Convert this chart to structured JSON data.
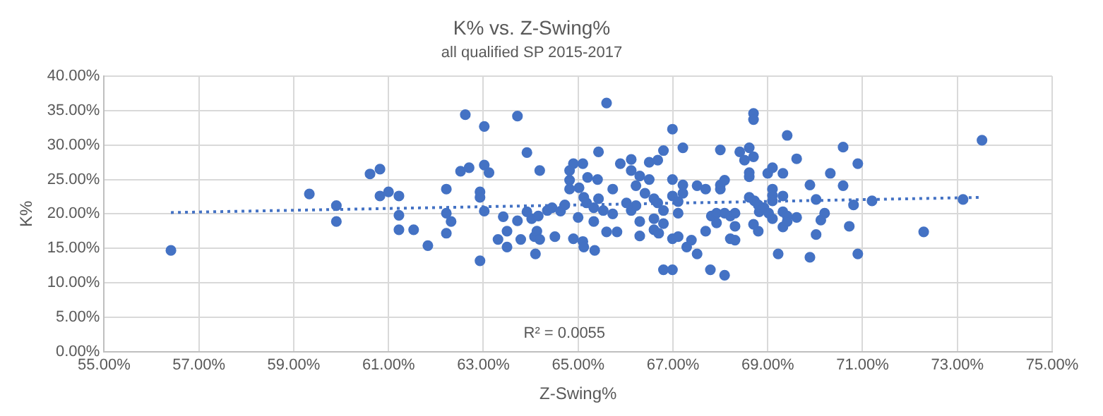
{
  "chart_data": {
    "type": "scatter",
    "title": "K% vs. Z-Swing%",
    "subtitle": "all qualified SP 2015-2017",
    "xlabel": "Z-Swing%",
    "ylabel": "K%",
    "xlim": [
      55,
      75
    ],
    "xticks": [
      {
        "value": 55,
        "label": "55.00%"
      },
      {
        "value": 57,
        "label": "57.00%"
      },
      {
        "value": 59,
        "label": "59.00%"
      },
      {
        "value": 61,
        "label": "61.00%"
      },
      {
        "value": 63,
        "label": "63.00%"
      },
      {
        "value": 65,
        "label": "65.00%"
      },
      {
        "value": 67,
        "label": "67.00%"
      },
      {
        "value": 69,
        "label": "69.00%"
      },
      {
        "value": 71,
        "label": "71.00%"
      },
      {
        "value": 73,
        "label": "73.00%"
      },
      {
        "value": 75,
        "label": "75.00%"
      }
    ],
    "ylim": [
      0,
      40
    ],
    "yticks": [
      {
        "value": 0,
        "label": "0.00%"
      },
      {
        "value": 5,
        "label": "5.00%"
      },
      {
        "value": 10,
        "label": "10.00%"
      },
      {
        "value": 15,
        "label": "15.00%"
      },
      {
        "value": 20,
        "label": "20.00%"
      },
      {
        "value": 25,
        "label": "25.00%"
      },
      {
        "value": 30,
        "label": "30.00%"
      },
      {
        "value": 35,
        "label": "35.00%"
      },
      {
        "value": 40,
        "label": "40.00%"
      }
    ],
    "grid": true,
    "marker": "circle",
    "annotations": [
      "R² = 0.0055"
    ],
    "series": [
      {
        "type": "scatter",
        "color": "#4472c4",
        "x": [
          56.41,
          59.33,
          59.9,
          59.9,
          60.61,
          60.82,
          60.82,
          61.0,
          61.22,
          61.22,
          61.22,
          61.53,
          61.83,
          62.22,
          62.22,
          62.22,
          62.32,
          62.62,
          62.52,
          62.7,
          62.93,
          62.93,
          62.93,
          63.02,
          63.02,
          63.12,
          63.02,
          63.42,
          63.31,
          63.5,
          63.5,
          63.72,
          63.72,
          63.79,
          63.92,
          63.92,
          64.02,
          64.08,
          64.1,
          64.19,
          64.16,
          64.13,
          64.19,
          64.35,
          64.45,
          64.51,
          64.63,
          64.72,
          64.82,
          64.82,
          64.82,
          64.9,
          64.9,
          65.02,
          65.0,
          65.1,
          65.12,
          65.1,
          65.12,
          65.18,
          65.2,
          65.33,
          65.33,
          65.35,
          65.41,
          65.43,
          65.43,
          65.53,
          65.6,
          65.6,
          65.73,
          65.73,
          65.82,
          65.89,
          66.02,
          66.12,
          66.12,
          66.12,
          66.22,
          66.22,
          66.3,
          66.3,
          66.3,
          66.41,
          66.5,
          66.5,
          66.6,
          66.6,
          66.6,
          66.68,
          66.68,
          66.7,
          66.8,
          66.8,
          66.8,
          66.8,
          66.99,
          66.99,
          66.99,
          66.99,
          66.99,
          67.11,
          67.11,
          67.11,
          67.21,
          67.21,
          67.21,
          67.29,
          67.39,
          67.51,
          67.51,
          67.69,
          67.69,
          67.81,
          67.79,
          67.92,
          67.92,
          68.0,
          68.0,
          68.0,
          68.09,
          68.09,
          68.09,
          68.21,
          68.21,
          68.31,
          68.31,
          68.31,
          68.41,
          68.51,
          68.61,
          68.61,
          68.61,
          68.61,
          68.7,
          68.7,
          68.7,
          68.7,
          68.72,
          68.8,
          68.8,
          68.82,
          68.92,
          69.0,
          69.02,
          69.1,
          69.1,
          69.1,
          69.1,
          69.1,
          69.22,
          69.32,
          69.32,
          69.32,
          69.32,
          69.41,
          69.41,
          69.41,
          69.61,
          69.61,
          69.89,
          69.89,
          70.02,
          70.02,
          70.12,
          70.2,
          70.32,
          70.59,
          70.59,
          70.72,
          70.81,
          70.9,
          70.9,
          71.2,
          72.29,
          73.12,
          73.52
        ],
        "values": [
          14.7,
          22.9,
          21.2,
          18.9,
          25.8,
          26.5,
          22.6,
          23.2,
          22.6,
          19.8,
          17.7,
          17.7,
          15.4,
          23.6,
          20.1,
          17.2,
          18.9,
          34.4,
          26.2,
          26.7,
          23.2,
          22.4,
          13.2,
          32.7,
          27.1,
          26.0,
          20.4,
          19.6,
          16.3,
          17.5,
          15.2,
          34.2,
          19.0,
          16.3,
          28.9,
          20.3,
          19.3,
          16.7,
          14.2,
          26.3,
          19.7,
          17.5,
          16.3,
          20.5,
          20.9,
          16.7,
          20.4,
          21.3,
          26.3,
          24.9,
          23.6,
          27.3,
          16.4,
          23.8,
          19.5,
          27.3,
          22.4,
          16.0,
          15.2,
          21.6,
          25.3,
          20.9,
          18.9,
          14.7,
          25.0,
          29.0,
          22.2,
          20.5,
          36.1,
          17.4,
          23.6,
          20.0,
          17.4,
          27.3,
          21.6,
          27.9,
          26.3,
          20.5,
          24.1,
          21.2,
          25.5,
          18.9,
          16.8,
          23.0,
          27.5,
          25.0,
          22.2,
          19.3,
          17.7,
          27.8,
          21.6,
          17.2,
          29.2,
          20.5,
          18.6,
          11.9,
          32.3,
          25.0,
          22.6,
          16.4,
          11.9,
          21.8,
          20.1,
          16.7,
          29.6,
          24.2,
          23.0,
          15.2,
          16.2,
          24.1,
          14.2,
          23.6,
          17.5,
          19.7,
          11.9,
          20.1,
          18.7,
          29.3,
          23.6,
          24.2,
          24.9,
          20.1,
          11.1,
          19.7,
          16.4,
          20.1,
          18.2,
          16.2,
          29.0,
          27.8,
          29.6,
          26.0,
          25.4,
          22.4,
          28.3,
          34.6,
          33.7,
          18.5,
          21.9,
          17.5,
          21.3,
          20.3,
          20.9,
          25.9,
          20.1,
          19.3,
          26.7,
          23.6,
          22.7,
          21.9,
          14.2,
          25.9,
          22.6,
          20.3,
          18.1,
          31.4,
          19.7,
          18.9,
          28.0,
          19.5,
          24.2,
          13.7,
          22.1,
          17.0,
          19.1,
          20.1,
          25.9,
          29.7,
          24.1,
          18.2,
          21.3,
          27.3,
          14.2,
          21.9,
          17.4,
          22.1,
          30.7
        ]
      },
      {
        "type": "line",
        "color": "#4472c4",
        "line_style": "dotted",
        "marker": "none",
        "x": [
          56.41,
          73.52
        ],
        "values": [
          20.2,
          22.4
        ]
      }
    ]
  }
}
